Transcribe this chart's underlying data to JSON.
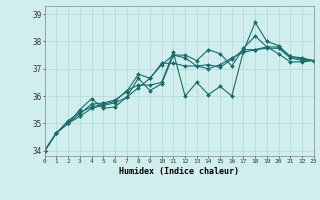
{
  "xlabel": "Humidex (Indice chaleur)",
  "bg_color": "#d0eeee",
  "grid_color": "#b0d8d8",
  "line_color": "#1a6b6b",
  "xlim": [
    0,
    23
  ],
  "ylim": [
    33.8,
    39.3
  ],
  "yticks": [
    34,
    35,
    36,
    37,
    38,
    39
  ],
  "xticks": [
    0,
    1,
    2,
    3,
    4,
    5,
    6,
    7,
    8,
    9,
    10,
    11,
    12,
    13,
    14,
    15,
    16,
    17,
    18,
    19,
    20,
    21,
    22,
    23
  ],
  "series": [
    [
      34.0,
      34.65,
      35.0,
      35.25,
      35.55,
      35.65,
      35.75,
      35.95,
      36.3,
      36.65,
      37.15,
      37.5,
      37.4,
      37.1,
      37.0,
      37.15,
      37.4,
      37.6,
      37.7,
      37.75,
      37.75,
      37.4,
      37.3,
      37.3
    ],
    [
      34.0,
      34.65,
      35.0,
      35.5,
      35.9,
      35.55,
      35.6,
      35.95,
      36.65,
      36.2,
      36.45,
      37.5,
      37.5,
      37.3,
      37.7,
      37.55,
      37.1,
      37.75,
      38.2,
      37.8,
      37.55,
      37.25,
      37.25,
      37.3
    ],
    [
      34.0,
      34.65,
      35.0,
      35.35,
      35.7,
      35.75,
      35.85,
      36.15,
      36.8,
      36.65,
      37.2,
      37.2,
      37.1,
      37.1,
      37.15,
      37.05,
      37.35,
      37.7,
      37.7,
      37.8,
      37.8,
      37.45,
      37.35,
      37.3
    ],
    [
      34.0,
      34.65,
      35.1,
      35.4,
      35.6,
      35.7,
      35.8,
      36.2,
      36.4,
      36.4,
      36.5,
      37.6,
      36.0,
      36.5,
      36.05,
      36.35,
      36.0,
      37.65,
      38.7,
      38.0,
      37.85,
      37.45,
      37.4,
      37.3
    ]
  ]
}
